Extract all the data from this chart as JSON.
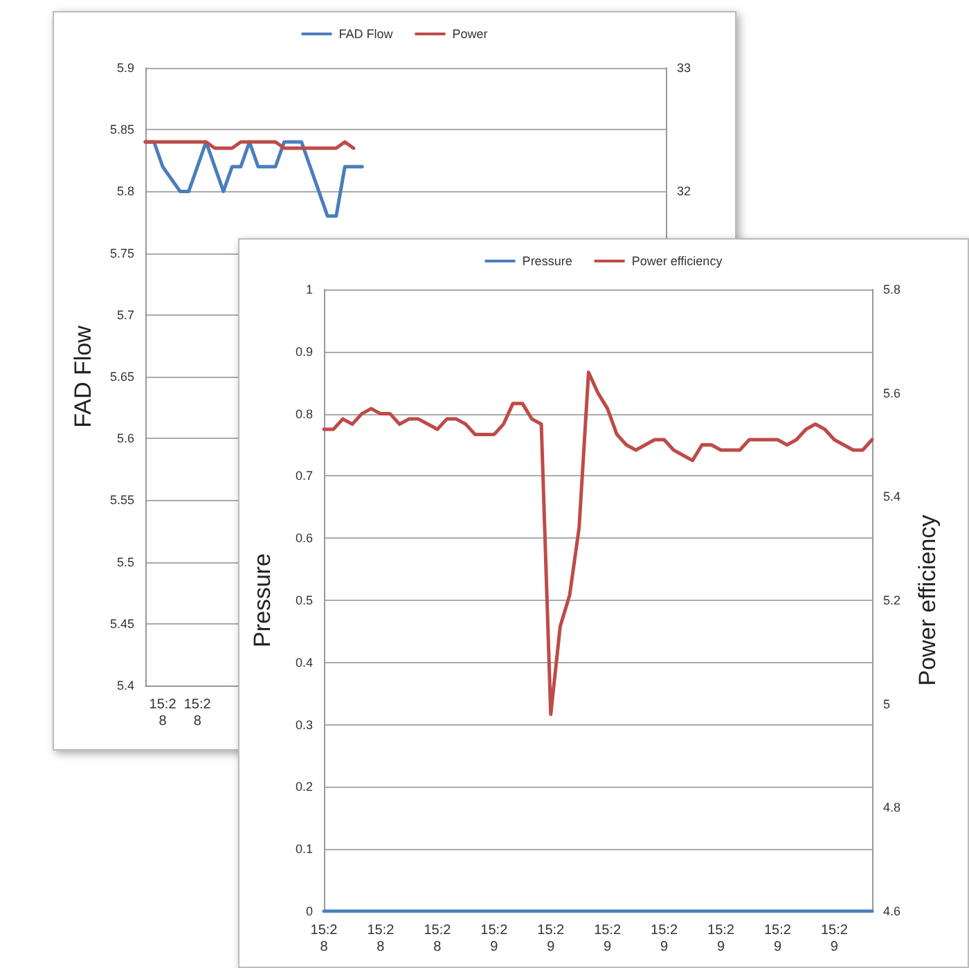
{
  "chart_data": [
    {
      "type": "line",
      "ylabel": "FAD Flow",
      "legend": "top",
      "grid": "y",
      "marker": "none",
      "categories": [
        null,
        null,
        "15:28",
        null,
        null,
        null,
        "15:28",
        null,
        null,
        null,
        null,
        null,
        null,
        null,
        null,
        null,
        null,
        null,
        null,
        null,
        null,
        null,
        null,
        null,
        null,
        null,
        null,
        null,
        null,
        null,
        null,
        null,
        null,
        null,
        null,
        null,
        null,
        null,
        null,
        null,
        null,
        null,
        null,
        null,
        null,
        null,
        null,
        null,
        null,
        null,
        null,
        null,
        null,
        null,
        null,
        null,
        null,
        null,
        null,
        null,
        null
      ],
      "ylim": [
        5.4,
        5.9
      ],
      "yticks": [
        5.4,
        5.45,
        5.5,
        5.55,
        5.6,
        5.65,
        5.7,
        5.75,
        5.8,
        5.85,
        5.9
      ],
      "y2lim": [
        28,
        33
      ],
      "y2ticks": [
        32,
        33
      ],
      "series": [
        {
          "name": "FAD Flow",
          "color": "#4a7ebb",
          "values": [
            5.84,
            5.84,
            5.82,
            5.81,
            5.8,
            5.8,
            5.82,
            5.84,
            5.82,
            5.8,
            5.82,
            5.82,
            5.84,
            5.82,
            5.82,
            5.82,
            5.84,
            5.84,
            5.84,
            5.82,
            5.8,
            5.78,
            5.78,
            5.82,
            5.82,
            5.82,
            null,
            null,
            null,
            null,
            null,
            null,
            null,
            null,
            null,
            null,
            null,
            null,
            null,
            null,
            null,
            null,
            null,
            null,
            null,
            null,
            null,
            null,
            null,
            null,
            null,
            null,
            null,
            null,
            null,
            null,
            null,
            null,
            null,
            null,
            null
          ]
        },
        {
          "name": "Power",
          "color": "#be4b48",
          "axis": "y2",
          "values": [
            32.4,
            32.4,
            32.4,
            32.4,
            32.4,
            32.4,
            32.4,
            32.4,
            32.35,
            32.35,
            32.35,
            32.4,
            32.4,
            32.4,
            32.4,
            32.4,
            32.35,
            32.35,
            32.35,
            32.35,
            32.35,
            32.35,
            32.35,
            32.4,
            32.35,
            null,
            null,
            null,
            null,
            null,
            null,
            null,
            null,
            null,
            null,
            null,
            null,
            null,
            null,
            null,
            null,
            null,
            null,
            null,
            null,
            null,
            null,
            null,
            null,
            null,
            null,
            null,
            null,
            null,
            null,
            null,
            null,
            null,
            null,
            null,
            null
          ]
        }
      ]
    },
    {
      "type": "line",
      "ylabel": "Pressure",
      "y2label": "Power efficiency",
      "legend": "top",
      "grid": "y",
      "marker": "none",
      "categories": [
        "15:28",
        null,
        null,
        null,
        null,
        null,
        "15:28",
        null,
        null,
        null,
        null,
        null,
        "15:28",
        null,
        null,
        null,
        null,
        null,
        "15:29",
        null,
        null,
        null,
        null,
        null,
        "15:29",
        null,
        null,
        null,
        null,
        null,
        "15:29",
        null,
        null,
        null,
        null,
        null,
        "15:29",
        null,
        null,
        null,
        null,
        null,
        "15:29",
        null,
        null,
        null,
        null,
        null,
        "15:29",
        null,
        null,
        null,
        null,
        null,
        "15:29",
        null,
        null,
        null,
        null
      ],
      "ylim": [
        0,
        1
      ],
      "yticks": [
        0,
        0.1,
        0.2,
        0.3,
        0.4,
        0.5,
        0.6,
        0.7,
        0.8,
        0.9,
        1
      ],
      "y2lim": [
        4.6,
        5.8
      ],
      "y2ticks": [
        4.6,
        4.8,
        5,
        5.2,
        5.4,
        5.6,
        5.8
      ],
      "series": [
        {
          "name": "Pressure",
          "color": "#4a7ebb",
          "values": [
            0,
            0,
            0,
            0,
            0,
            0,
            0,
            0,
            0,
            0,
            0,
            0,
            0,
            0,
            0,
            0,
            0,
            0,
            0,
            0,
            0,
            0,
            0,
            0,
            0,
            0,
            0,
            0,
            0,
            0,
            0,
            0,
            0,
            0,
            0,
            0,
            0,
            0,
            0,
            0,
            0,
            0,
            0,
            0,
            0,
            0,
            0,
            0,
            0,
            0,
            0,
            0,
            0,
            0,
            0,
            0,
            0,
            0,
            0
          ]
        },
        {
          "name": "Power efficiency",
          "color": "#be4b48",
          "axis": "y2",
          "values": [
            5.53,
            5.53,
            5.55,
            5.54,
            5.56,
            5.57,
            5.56,
            5.56,
            5.54,
            5.55,
            5.55,
            5.54,
            5.53,
            5.55,
            5.55,
            5.54,
            5.52,
            5.52,
            5.52,
            5.54,
            5.58,
            5.58,
            5.55,
            5.54,
            4.98,
            5.15,
            5.21,
            5.34,
            5.64,
            5.6,
            5.57,
            5.52,
            5.5,
            5.49,
            5.5,
            5.51,
            5.51,
            5.49,
            5.48,
            5.47,
            5.5,
            5.5,
            5.49,
            5.49,
            5.49,
            5.51,
            5.51,
            5.51,
            5.51,
            5.5,
            5.51,
            5.53,
            5.54,
            5.53,
            5.51,
            5.5,
            5.49,
            5.49,
            5.51
          ]
        }
      ]
    }
  ]
}
